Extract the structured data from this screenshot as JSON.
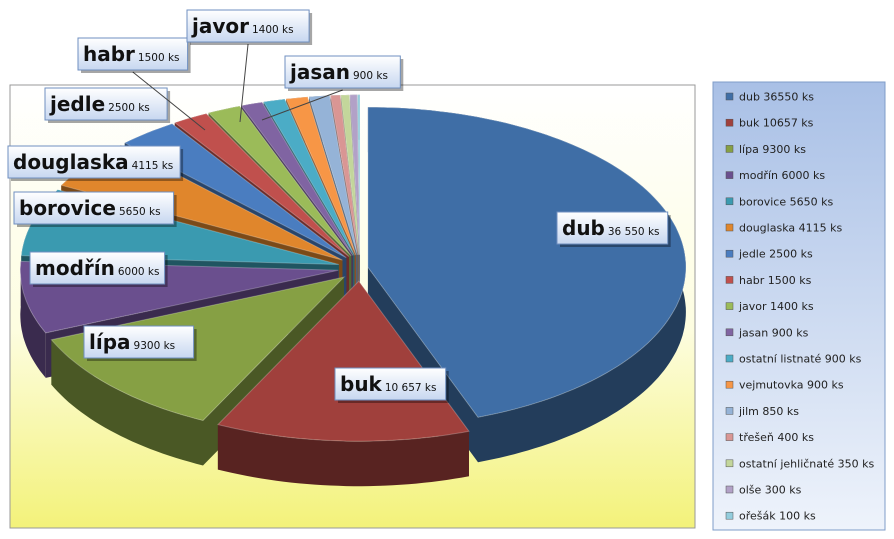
{
  "chart_data": {
    "type": "pie3d",
    "categories": [
      "dub",
      "buk",
      "lípa",
      "modřín",
      "borovice",
      "douglaska",
      "jedle",
      "habr",
      "javor",
      "jasan",
      null,
      null,
      null,
      null,
      null,
      null,
      null
    ],
    "values": [
      36550,
      10657,
      9300,
      6000,
      5650,
      4115,
      2500,
      1500,
      1400,
      900,
      900,
      900,
      850,
      400,
      350,
      300,
      100
    ],
    "value_labels": [
      "36 550 ks",
      "10 657 ks",
      "9300 ks",
      "6000 ks",
      "5650 ks",
      "4115 ks",
      "2500 ks",
      "1500 ks",
      "1400 ks",
      "900 ks",
      null,
      null,
      null,
      null,
      null,
      null,
      null
    ],
    "legend": [
      "dub 36550 ks",
      "buk 10657 ks",
      "lípa 9300 ks",
      "modřín 6000 ks",
      "borovice 5650 ks",
      "douglaska 4115 ks",
      "jedle 2500 ks",
      "habr 1500 ks",
      "javor 1400 ks",
      "jasan 900 ks",
      "ostatní listnaté 900 ks",
      "vejmutovka 900 ks",
      "jilm 850 ks",
      "třešeň 400 ks",
      "ostatní jehličnaté 350 ks",
      "olše 300 ks",
      "ořešák 100 ks"
    ],
    "colors": [
      "#3f6ea6",
      "#a0403c",
      "#86a044",
      "#6a4f8e",
      "#3a9ab0",
      "#e0862c",
      "#4a7dc0",
      "#c0504d",
      "#9bbb59",
      "#8064a2",
      "#4bacc6",
      "#f79646",
      "#95b3d7",
      "#d99694",
      "#c3d69b",
      "#b2a1c7",
      "#93cddd"
    ]
  }
}
